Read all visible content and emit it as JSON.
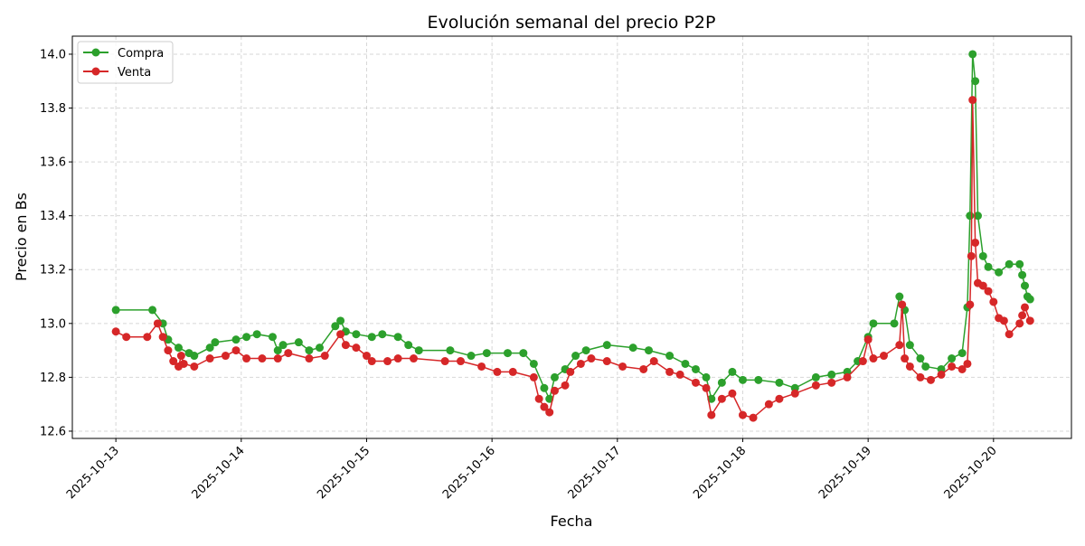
{
  "chart_data": {
    "type": "line",
    "title": "Evolución semanal del precio P2P",
    "xlabel": "Fecha",
    "ylabel": "Precio en Bs",
    "xlim": [
      "2025-10-12T15:40",
      "2025-10-20T14:55"
    ],
    "ylim": [
      12.573,
      14.067
    ],
    "x_ticks": [
      "2025-10-13",
      "2025-10-14",
      "2025-10-15",
      "2025-10-16",
      "2025-10-17",
      "2025-10-18",
      "2025-10-19",
      "2025-10-20"
    ],
    "y_ticks": [
      "12.6",
      "12.8",
      "13.0",
      "13.2",
      "13.4",
      "13.6",
      "13.8",
      "14.0"
    ],
    "grid": true,
    "legend_position": "top-left",
    "series": [
      {
        "name": "Compra",
        "color": "#2ca02c",
        "marker": "circle",
        "x": [
          "2025-10-13T00:00",
          "2025-10-13T07:00",
          "2025-10-13T09:00",
          "2025-10-13T10:00",
          "2025-10-13T12:00",
          "2025-10-13T14:00",
          "2025-10-13T15:00",
          "2025-10-13T18:00",
          "2025-10-13T19:00",
          "2025-10-13T23:00",
          "2025-10-14T01:00",
          "2025-10-14T03:00",
          "2025-10-14T06:00",
          "2025-10-14T07:00",
          "2025-10-14T08:00",
          "2025-10-14T11:00",
          "2025-10-14T13:00",
          "2025-10-14T15:00",
          "2025-10-14T18:00",
          "2025-10-14T19:00",
          "2025-10-14T20:00",
          "2025-10-14T22:00",
          "2025-10-15T01:00",
          "2025-10-15T03:00",
          "2025-10-15T06:00",
          "2025-10-15T08:00",
          "2025-10-15T10:00",
          "2025-10-15T16:00",
          "2025-10-15T20:00",
          "2025-10-15T23:00",
          "2025-10-16T03:00",
          "2025-10-16T06:00",
          "2025-10-16T08:00",
          "2025-10-16T10:00",
          "2025-10-16T11:00",
          "2025-10-16T12:00",
          "2025-10-16T14:00",
          "2025-10-16T16:00",
          "2025-10-16T18:00",
          "2025-10-16T22:00",
          "2025-10-17T03:00",
          "2025-10-17T06:00",
          "2025-10-17T10:00",
          "2025-10-17T13:00",
          "2025-10-17T15:00",
          "2025-10-17T17:00",
          "2025-10-17T18:00",
          "2025-10-17T20:00",
          "2025-10-17T22:00",
          "2025-10-18T00:00",
          "2025-10-18T03:00",
          "2025-10-18T07:00",
          "2025-10-18T10:00",
          "2025-10-18T14:00",
          "2025-10-18T17:00",
          "2025-10-18T20:00",
          "2025-10-18T22:00",
          "2025-10-19T00:00",
          "2025-10-19T01:00",
          "2025-10-19T05:00",
          "2025-10-19T06:00",
          "2025-10-19T07:00",
          "2025-10-19T08:00",
          "2025-10-19T10:00",
          "2025-10-19T11:00",
          "2025-10-19T14:00",
          "2025-10-19T16:00",
          "2025-10-19T18:00",
          "2025-10-19T19:00",
          "2025-10-19T19:30",
          "2025-10-19T20:00",
          "2025-10-19T20:30",
          "2025-10-19T21:00",
          "2025-10-19T22:00",
          "2025-10-19T23:00",
          "2025-10-20T01:00",
          "2025-10-20T03:00",
          "2025-10-20T05:00",
          "2025-10-20T05:30",
          "2025-10-20T06:00",
          "2025-10-20T06:30",
          "2025-10-20T07:00"
        ],
        "y": [
          13.05,
          13.05,
          13.0,
          12.94,
          12.91,
          12.89,
          12.88,
          12.91,
          12.93,
          12.94,
          12.95,
          12.96,
          12.95,
          12.9,
          12.92,
          12.93,
          12.9,
          12.91,
          12.99,
          13.01,
          12.97,
          12.96,
          12.95,
          12.96,
          12.95,
          12.92,
          12.9,
          12.9,
          12.88,
          12.89,
          12.89,
          12.89,
          12.85,
          12.76,
          12.72,
          12.8,
          12.83,
          12.88,
          12.9,
          12.92,
          12.91,
          12.9,
          12.88,
          12.85,
          12.83,
          12.8,
          12.72,
          12.78,
          12.82,
          12.79,
          12.79,
          12.78,
          12.76,
          12.8,
          12.81,
          12.82,
          12.86,
          12.95,
          13.0,
          13.0,
          13.1,
          13.05,
          12.92,
          12.87,
          12.84,
          12.83,
          12.87,
          12.89,
          13.06,
          13.4,
          14.0,
          13.9,
          13.4,
          13.25,
          13.21,
          13.19,
          13.22,
          13.22,
          13.18,
          13.14,
          13.1,
          13.09
        ]
      },
      {
        "name": "Venta",
        "color": "#d62728",
        "marker": "circle",
        "x": [
          "2025-10-13T00:00",
          "2025-10-13T02:00",
          "2025-10-13T06:00",
          "2025-10-13T08:00",
          "2025-10-13T09:00",
          "2025-10-13T10:00",
          "2025-10-13T11:00",
          "2025-10-13T12:00",
          "2025-10-13T12:30",
          "2025-10-13T13:00",
          "2025-10-13T15:00",
          "2025-10-13T18:00",
          "2025-10-13T21:00",
          "2025-10-13T23:00",
          "2025-10-14T01:00",
          "2025-10-14T04:00",
          "2025-10-14T07:00",
          "2025-10-14T09:00",
          "2025-10-14T13:00",
          "2025-10-14T16:00",
          "2025-10-14T19:00",
          "2025-10-14T20:00",
          "2025-10-14T22:00",
          "2025-10-15T00:00",
          "2025-10-15T01:00",
          "2025-10-15T04:00",
          "2025-10-15T06:00",
          "2025-10-15T09:00",
          "2025-10-15T15:00",
          "2025-10-15T18:00",
          "2025-10-15T22:00",
          "2025-10-16T01:00",
          "2025-10-16T04:00",
          "2025-10-16T08:00",
          "2025-10-16T09:00",
          "2025-10-16T10:00",
          "2025-10-16T11:00",
          "2025-10-16T12:00",
          "2025-10-16T14:00",
          "2025-10-16T15:00",
          "2025-10-16T17:00",
          "2025-10-16T19:00",
          "2025-10-16T22:00",
          "2025-10-17T01:00",
          "2025-10-17T05:00",
          "2025-10-17T07:00",
          "2025-10-17T10:00",
          "2025-10-17T12:00",
          "2025-10-17T15:00",
          "2025-10-17T17:00",
          "2025-10-17T18:00",
          "2025-10-17T20:00",
          "2025-10-17T22:00",
          "2025-10-18T00:00",
          "2025-10-18T02:00",
          "2025-10-18T05:00",
          "2025-10-18T07:00",
          "2025-10-18T10:00",
          "2025-10-18T14:00",
          "2025-10-18T17:00",
          "2025-10-18T20:00",
          "2025-10-18T23:00",
          "2025-10-19T00:00",
          "2025-10-19T01:00",
          "2025-10-19T03:00",
          "2025-10-19T06:00",
          "2025-10-19T06:30",
          "2025-10-19T07:00",
          "2025-10-19T08:00",
          "2025-10-19T10:00",
          "2025-10-19T12:00",
          "2025-10-19T14:00",
          "2025-10-19T16:00",
          "2025-10-19T18:00",
          "2025-10-19T19:00",
          "2025-10-19T19:30",
          "2025-10-19T19:45",
          "2025-10-19T20:00",
          "2025-10-19T20:30",
          "2025-10-19T21:00",
          "2025-10-19T22:00",
          "2025-10-19T23:00",
          "2025-10-20T00:00",
          "2025-10-20T01:00",
          "2025-10-20T02:00",
          "2025-10-20T03:00",
          "2025-10-20T05:00",
          "2025-10-20T05:30",
          "2025-10-20T06:00",
          "2025-10-20T07:00"
        ],
        "y": [
          12.97,
          12.95,
          12.95,
          13.0,
          12.95,
          12.9,
          12.86,
          12.84,
          12.88,
          12.85,
          12.84,
          12.87,
          12.88,
          12.9,
          12.87,
          12.87,
          12.87,
          12.89,
          12.87,
          12.88,
          12.96,
          12.92,
          12.91,
          12.88,
          12.86,
          12.86,
          12.87,
          12.87,
          12.86,
          12.86,
          12.84,
          12.82,
          12.82,
          12.8,
          12.72,
          12.69,
          12.67,
          12.75,
          12.77,
          12.82,
          12.85,
          12.87,
          12.86,
          12.84,
          12.83,
          12.86,
          12.82,
          12.81,
          12.78,
          12.76,
          12.66,
          12.72,
          12.74,
          12.66,
          12.65,
          12.7,
          12.72,
          12.74,
          12.77,
          12.78,
          12.8,
          12.86,
          12.94,
          12.87,
          12.88,
          12.92,
          13.07,
          12.87,
          12.84,
          12.8,
          12.79,
          12.81,
          12.84,
          12.83,
          12.85,
          13.07,
          13.25,
          13.83,
          13.3,
          13.15,
          13.14,
          13.12,
          13.08,
          13.02,
          13.01,
          12.96,
          13.0,
          13.03,
          13.06,
          13.01
        ]
      }
    ]
  }
}
